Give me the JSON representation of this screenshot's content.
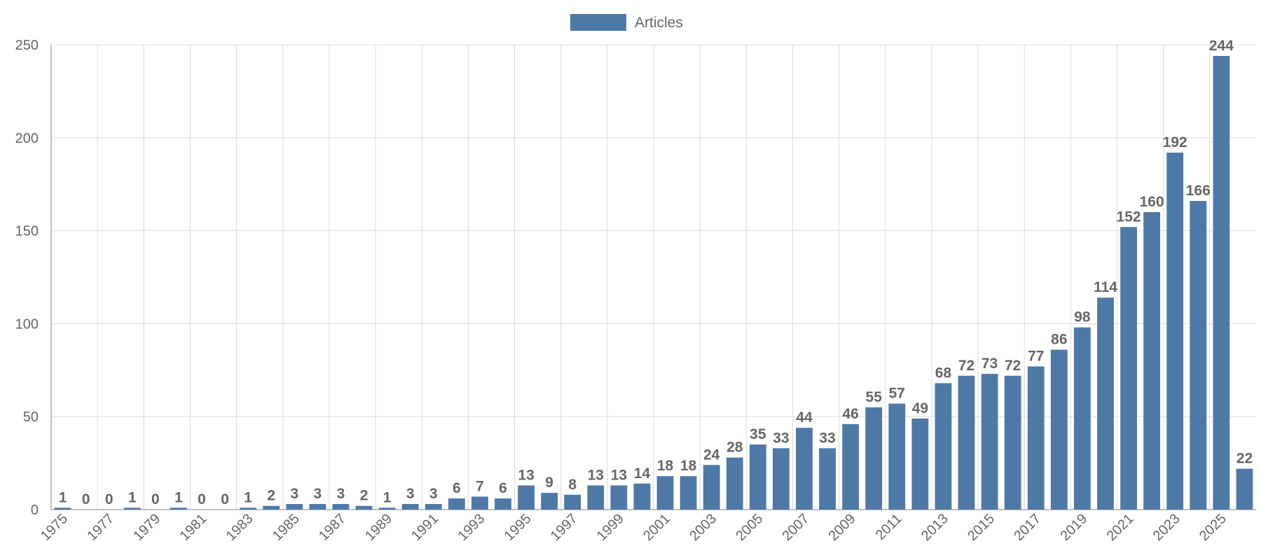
{
  "chart_data": {
    "type": "bar",
    "categories": [
      "1975",
      "1976",
      "1977",
      "1978",
      "1979",
      "1980",
      "1981",
      "1982",
      "1983",
      "1984",
      "1985",
      "1986",
      "1987",
      "1988",
      "1989",
      "1990",
      "1991",
      "1992",
      "1993",
      "1994",
      "1995",
      "1996",
      "1997",
      "1998",
      "1999",
      "2000",
      "2001",
      "2002",
      "2003",
      "2004",
      "2005",
      "2006",
      "2007",
      "2008",
      "2009",
      "2010",
      "2011",
      "2012",
      "2013",
      "2014",
      "2015",
      "2016",
      "2017",
      "2018",
      "2019",
      "2020",
      "2021",
      "2022",
      "2023",
      "2024",
      "2025",
      "2026"
    ],
    "x_tick_labels": [
      "1975",
      "1977",
      "1979",
      "1981",
      "1983",
      "1985",
      "1987",
      "1989",
      "1991",
      "1993",
      "1995",
      "1997",
      "1999",
      "2001",
      "2003",
      "2005",
      "2007",
      "2009",
      "2011",
      "2013",
      "2015",
      "2017",
      "2019",
      "2021",
      "2023",
      "2025"
    ],
    "series": [
      {
        "name": "Articles",
        "color": "#4e79a7",
        "values": [
          1,
          0,
          0,
          1,
          0,
          1,
          0,
          0,
          1,
          2,
          3,
          3,
          3,
          2,
          1,
          3,
          3,
          6,
          7,
          6,
          13,
          9,
          8,
          13,
          13,
          14,
          18,
          18,
          24,
          28,
          35,
          33,
          44,
          33,
          46,
          55,
          57,
          49,
          68,
          72,
          73,
          72,
          77,
          86,
          98,
          114,
          152,
          160,
          192,
          166,
          244,
          22
        ]
      }
    ],
    "y_ticks": [
      0,
      50,
      100,
      150,
      200,
      250
    ],
    "ylim": [
      0,
      250
    ],
    "title": "",
    "xlabel": "",
    "ylabel": "",
    "grid": true,
    "legend_position": "top-center",
    "data_labels": true
  }
}
